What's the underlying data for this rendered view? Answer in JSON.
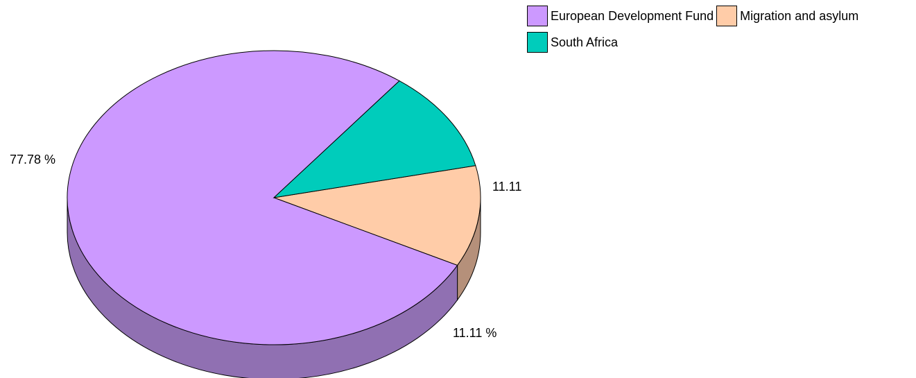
{
  "chart_data": {
    "type": "pie",
    "style": "3d",
    "categories": [
      "European Development Fund",
      "Migration and asylum",
      "South Africa"
    ],
    "values": [
      77.78,
      11.11,
      11.11
    ],
    "value_labels": [
      "77.78 %",
      "11.11 %",
      "11.11"
    ],
    "colors": [
      "#cc99ff",
      "#ffcca8",
      "#00ccbb"
    ],
    "side_colors": [
      "#9070b2",
      "#b5907a",
      "#00968a"
    ],
    "legend_position": "top-right"
  }
}
